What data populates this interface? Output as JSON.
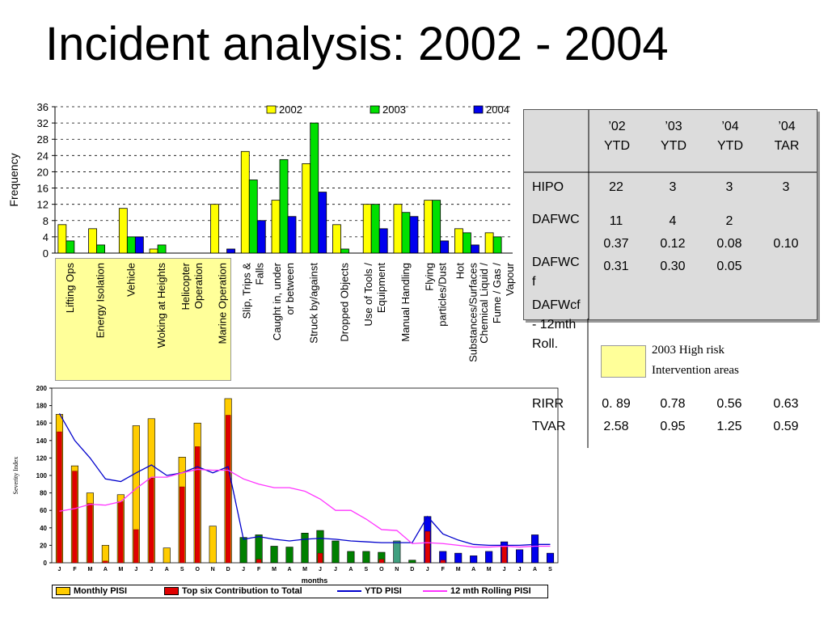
{
  "title": "Incident analysis: 2002 - 2004",
  "chart_data": [
    {
      "type": "bar",
      "ylabel": "Frequency",
      "ylim": [
        0,
        36
      ],
      "yticks": [
        "0",
        "4",
        "8",
        "12",
        "16",
        "20",
        "24",
        "28",
        "32",
        "36"
      ],
      "grid": true,
      "legend_position": "top",
      "categories": [
        "Lifting Ops",
        "Energy Isolation",
        "Vehicle",
        "Woking at Heights",
        "Helicopter Operation",
        "Marine Operation",
        "Slip, Trips & Falls",
        "Caught in, under or between",
        "Struck by/against",
        "Dropped Objects",
        "Use of Tools / Equipment",
        "Manual Handling",
        "Flying particles/Dust",
        "Hot Substances/Surfaces",
        "Chemical Liquid / Fume / Gas / Vapour"
      ],
      "series": [
        {
          "name": "2002",
          "color": "#ffff00",
          "values": [
            7,
            6,
            11,
            1,
            0,
            12,
            25,
            13,
            22,
            7,
            12,
            12,
            13,
            6,
            5
          ]
        },
        {
          "name": "2003",
          "color": "#00e000",
          "values": [
            3,
            2,
            4,
            2,
            0,
            0,
            18,
            23,
            32,
            1,
            12,
            10,
            13,
            5,
            4
          ]
        },
        {
          "name": "2004",
          "color": "#0000ee",
          "values": [
            0,
            0,
            4,
            0,
            0,
            1,
            8,
            9,
            15,
            0,
            6,
            9,
            3,
            2,
            0
          ]
        }
      ],
      "highlight_key": "2003 High risk Intervention areas"
    },
    {
      "type": "bar+line",
      "ylabel": "Severity Index",
      "xlabel": "months",
      "ylim": [
        0,
        200
      ],
      "yticks": [
        "0",
        "20",
        "40",
        "60",
        "80",
        "100",
        "120",
        "140",
        "160",
        "180",
        "200"
      ],
      "categories": [
        "J",
        "F",
        "M",
        "A",
        "M",
        "J",
        "J",
        "A",
        "S",
        "O",
        "N",
        "D",
        "J",
        "F",
        "M",
        "A",
        "M",
        "J",
        "J",
        "A",
        "S",
        "O",
        "N",
        "D",
        "J",
        "F",
        "M",
        "A",
        "M",
        "J",
        "J",
        "A",
        "S"
      ],
      "series": [
        {
          "name": "Monthly PISI",
          "values": [
            170,
            111,
            80,
            20,
            78,
            157,
            165,
            17,
            121,
            160,
            42,
            188,
            29,
            32,
            19,
            18,
            34,
            37,
            25,
            13,
            13,
            12,
            25,
            3,
            53,
            13,
            11,
            8,
            13,
            24,
            15,
            32,
            11
          ]
        },
        {
          "name": "Top six Contribution to Total",
          "color": "#e00000",
          "values": [
            150,
            105,
            68,
            2,
            70,
            38,
            97,
            0,
            87,
            133,
            0,
            169,
            0,
            4,
            0,
            0,
            0,
            11,
            0,
            0,
            0,
            4,
            0,
            0,
            36,
            3,
            0,
            0,
            0,
            20,
            0,
            0,
            0
          ]
        },
        {
          "name": "YTD PISI",
          "color": "#0000cc",
          "values": [
            171,
            140,
            120,
            96,
            93,
            103,
            112,
            100,
            103,
            110,
            103,
            110,
            27,
            30,
            27,
            25,
            27,
            28,
            27,
            25,
            24,
            23,
            23,
            23,
            53,
            33,
            26,
            21,
            20,
            20,
            20,
            21,
            21
          ]
        },
        {
          "name": "12 mth Rolling PISI",
          "color": "#ff33ff",
          "values": [
            59,
            62,
            67,
            66,
            70,
            85,
            98,
            98,
            103,
            107,
            106,
            106,
            96,
            90,
            86,
            86,
            82,
            73,
            60,
            60,
            50,
            38,
            37,
            22,
            23,
            22,
            20,
            18,
            18,
            19,
            18,
            19,
            19
          ]
        }
      ],
      "bar_colors": {
        "2002": "#ffcc00",
        "2003": "#008000",
        "2004": "#0000ee",
        "highlight": "#40a080"
      }
    }
  ],
  "kpi_table": {
    "header": [
      "",
      "’02\nYTD",
      "’03\nYTD",
      "’04\nYTD",
      "’04\nTAR"
    ],
    "rows": [
      {
        "label": "HIPO",
        "values": [
          "22",
          "3",
          "3",
          "3"
        ]
      },
      {
        "label": "DAFWC",
        "values": [
          "11",
          "4",
          "2",
          ""
        ]
      },
      {
        "label": "",
        "values": [
          "0.37",
          "0.12",
          "0.08",
          "0.10"
        ]
      },
      {
        "label": "DAFWCf",
        "values": [
          "0.31",
          "0.30",
          "0.05",
          ""
        ]
      },
      {
        "label": "DAFWcf - 12mth Roll.",
        "values": [
          "",
          "",
          "",
          ""
        ]
      },
      {
        "label": "RIRR",
        "values": [
          "0. 89",
          "0.78",
          "0.56",
          "0.63"
        ]
      },
      {
        "label": "TVAR",
        "values": [
          "2.58",
          "0.95",
          "1.25",
          "0.59"
        ]
      }
    ]
  }
}
